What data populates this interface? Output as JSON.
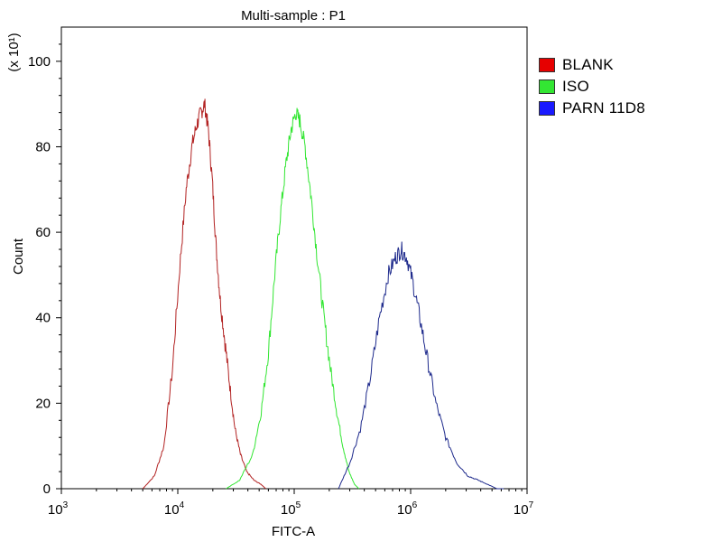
{
  "chart_data": {
    "type": "line",
    "title": "Multi-sample : P1",
    "xlabel": "FITC-A",
    "ylabel": "Count",
    "y_multiplier_label": "(x 10¹)",
    "xscale": "log",
    "xlim": [
      1000,
      10000000
    ],
    "ylim": [
      0,
      108
    ],
    "x_ticks": [
      {
        "value": 1000,
        "base": "10",
        "exp": "3"
      },
      {
        "value": 10000,
        "base": "10",
        "exp": "4"
      },
      {
        "value": 100000,
        "base": "10",
        "exp": "5"
      },
      {
        "value": 1000000,
        "base": "10",
        "exp": "6"
      },
      {
        "value": 10000000,
        "base": "10",
        "exp": "7"
      }
    ],
    "y_ticks": [
      0,
      20,
      40,
      60,
      80,
      100
    ],
    "legend_position": "right",
    "series": [
      {
        "name": "BLANK",
        "color": "#b22222",
        "points": [
          [
            5000,
            0
          ],
          [
            6300,
            3
          ],
          [
            7600,
            10
          ],
          [
            9000,
            28
          ],
          [
            10400,
            52
          ],
          [
            11800,
            70
          ],
          [
            13200,
            80
          ],
          [
            14500,
            85
          ],
          [
            15800,
            88
          ],
          [
            17000,
            90
          ],
          [
            18300,
            84
          ],
          [
            19800,
            72
          ],
          [
            21400,
            56
          ],
          [
            23200,
            44
          ],
          [
            25500,
            34
          ],
          [
            28000,
            24
          ],
          [
            31000,
            14
          ],
          [
            34500,
            8
          ],
          [
            39000,
            4
          ],
          [
            45000,
            2
          ],
          [
            52000,
            1
          ],
          [
            57000,
            0
          ]
        ]
      },
      {
        "name": "ISO",
        "color": "#32e632",
        "points": [
          [
            26000,
            0
          ],
          [
            34000,
            2
          ],
          [
            44000,
            8
          ],
          [
            52000,
            18
          ],
          [
            60000,
            32
          ],
          [
            68000,
            50
          ],
          [
            76000,
            64
          ],
          [
            85000,
            76
          ],
          [
            94000,
            84
          ],
          [
            103000,
            88
          ],
          [
            112000,
            86
          ],
          [
            124000,
            80
          ],
          [
            140000,
            68
          ],
          [
            158000,
            54
          ],
          [
            180000,
            40
          ],
          [
            205000,
            28
          ],
          [
            232000,
            18
          ],
          [
            262000,
            10
          ],
          [
            295000,
            4
          ],
          [
            330000,
            1
          ],
          [
            360000,
            0
          ]
        ]
      },
      {
        "name": "PARN 11D8",
        "color": "#1e2a8c",
        "points": [
          [
            240000,
            0
          ],
          [
            300000,
            6
          ],
          [
            370000,
            14
          ],
          [
            450000,
            26
          ],
          [
            540000,
            40
          ],
          [
            640000,
            50
          ],
          [
            740000,
            54
          ],
          [
            830000,
            56
          ],
          [
            930000,
            54
          ],
          [
            1050000,
            48
          ],
          [
            1200000,
            40
          ],
          [
            1400000,
            30
          ],
          [
            1650000,
            20
          ],
          [
            2000000,
            12
          ],
          [
            2500000,
            6
          ],
          [
            3100000,
            3
          ],
          [
            3800000,
            2
          ],
          [
            4600000,
            1
          ],
          [
            5500000,
            0
          ],
          [
            6300000,
            0
          ]
        ]
      }
    ]
  }
}
